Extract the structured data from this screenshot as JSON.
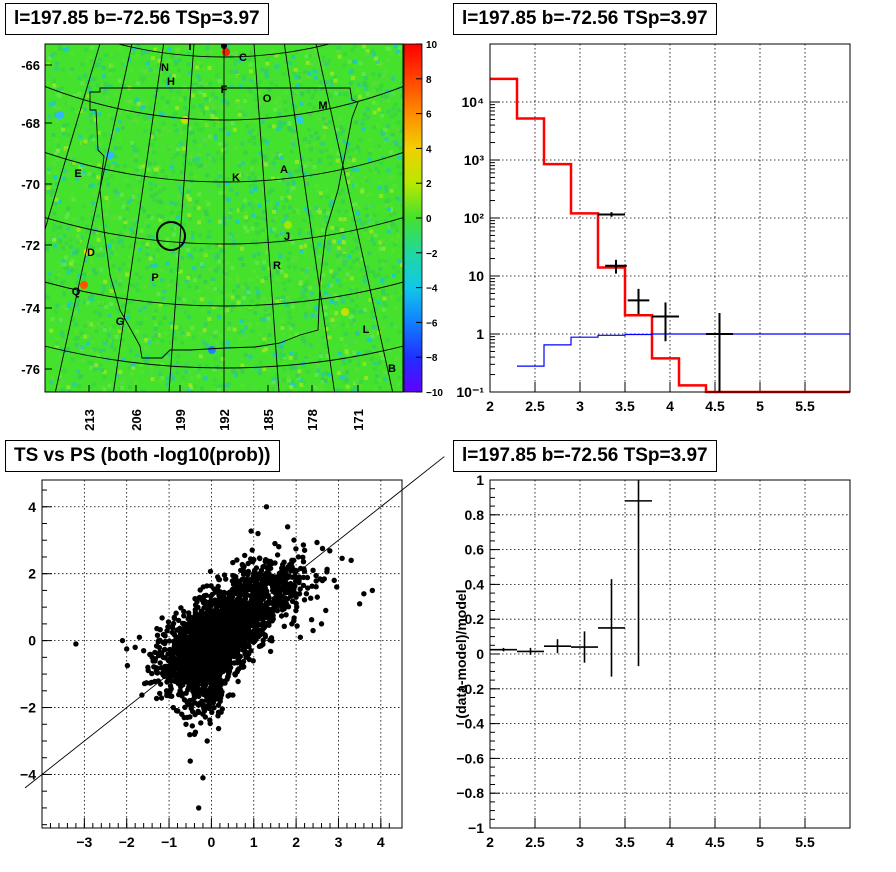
{
  "skymap": {
    "title": "l=197.85 b=-72.56 TSp=3.97",
    "ylabels": [
      "-66",
      "-68",
      "-70",
      "-72",
      "-74",
      "-76"
    ],
    "xlabels": [
      "213",
      "206",
      "199",
      "192",
      "185",
      "178",
      "171"
    ],
    "colorbar": {
      "min": -10,
      "max": 10,
      "ticks": [
        "10",
        "8",
        "6",
        "4",
        "2",
        "0",
        "−2",
        "−4",
        "−6",
        "−8",
        "−10"
      ]
    },
    "region_labels": [
      "I",
      "C",
      "N",
      "H",
      "F",
      "O",
      "M",
      "E",
      "K",
      "A",
      "J",
      "D",
      "R",
      "P",
      "Q",
      "G",
      "L",
      "B"
    ]
  },
  "chart_data": [
    {
      "type": "line",
      "title": "l=197.85 b=-72.56 TSp=3.97",
      "yscale": "log",
      "xlim": [
        2,
        6
      ],
      "ylim": [
        0.1,
        100000
      ],
      "x_ticks": [
        "2",
        "2.5",
        "3",
        "3.5",
        "4",
        "4.5",
        "5",
        "5.5"
      ],
      "y_ticks": [
        "10⁻¹",
        "1",
        "10",
        "10²",
        "10³",
        "10⁴"
      ],
      "grid": true,
      "series": [
        {
          "color": "#ff0000",
          "style": "step",
          "edges": [
            2,
            2.3,
            2.6,
            2.9,
            3.2,
            3.5,
            3.8,
            4.1,
            4.4,
            6
          ],
          "values": [
            25000,
            5200,
            850,
            120,
            14,
            2.1,
            0.38,
            0.13,
            0.1
          ]
        },
        {
          "color": "#0000ff",
          "style": "step",
          "edges": [
            2.3,
            2.6,
            2.9,
            3.2,
            3.5,
            3.8,
            4.1,
            4.4,
            6
          ],
          "values": [
            0.28,
            0.65,
            0.88,
            0.95,
            0.98,
            1.0,
            1.0,
            1.0
          ]
        },
        {
          "color": "#000000",
          "style": "errorbar",
          "points": [
            {
              "x": 3.35,
              "xerr": 0.15,
              "y": 115,
              "ylo": 105,
              "yhi": 126
            },
            {
              "x": 3.4,
              "xerr": 0.12,
              "y": 15,
              "ylo": 11,
              "yhi": 19
            },
            {
              "x": 3.65,
              "xerr": 0.12,
              "y": 3.8,
              "ylo": 2.2,
              "yhi": 6
            },
            {
              "x": 3.95,
              "xerr": 0.15,
              "y": 2,
              "ylo": 0.75,
              "yhi": 3.5
            },
            {
              "x": 4.55,
              "xerr": 0.15,
              "y": 1,
              "ylo": 0.1,
              "yhi": 2.3
            }
          ]
        }
      ]
    },
    {
      "type": "scatter",
      "title": "TS vs PS (both -log10(prob))",
      "xlim": [
        -4,
        4.5
      ],
      "ylim": [
        -5.6,
        4.8
      ],
      "x_ticks": [
        "−3",
        "−2",
        "−1",
        "0",
        "1",
        "2",
        "3",
        "4"
      ],
      "y_ticks": [
        "−4",
        "−2",
        "0",
        "2",
        "4"
      ],
      "grid": true,
      "line": {
        "slope": 1,
        "intercept": 0
      },
      "outliers": [
        [
          -3.2,
          -0.1
        ],
        [
          -2.0,
          -0.25
        ],
        [
          -1.8,
          -0.2
        ],
        [
          -1.5,
          -0.8
        ],
        [
          -1.3,
          -0.9
        ],
        [
          -1.2,
          -1.3
        ],
        [
          -1.0,
          -1.5
        ],
        [
          -0.9,
          -2.0
        ],
        [
          -0.7,
          -2.2
        ],
        [
          -0.6,
          -2.5
        ],
        [
          -0.5,
          -3.6
        ],
        [
          -0.2,
          -4.1
        ],
        [
          -0.3,
          -5.0
        ],
        [
          -0.4,
          -2.8
        ],
        [
          -0.1,
          -3.0
        ],
        [
          3.8,
          1.5
        ],
        [
          3.6,
          1.4
        ],
        [
          3.5,
          1.1
        ],
        [
          3.3,
          2.4
        ],
        [
          2.9,
          1.8
        ],
        [
          2.5,
          1.3
        ],
        [
          2.7,
          0.9
        ],
        [
          2.2,
          2.7
        ],
        [
          2.4,
          2.1
        ],
        [
          1.8,
          3.4
        ],
        [
          1.3,
          4.0
        ],
        [
          1.1,
          3.2
        ],
        [
          1.5,
          2.9
        ],
        [
          1.9,
          2.4
        ],
        [
          2.6,
          0.5
        ],
        [
          2.4,
          0.3
        ],
        [
          2.1,
          0.1
        ],
        [
          1.9,
          0.5
        ],
        [
          -2.1,
          0.0
        ],
        [
          -1.7,
          0.1
        ],
        [
          -1.6,
          -0.3
        ],
        [
          -1.4,
          -0.5
        ]
      ],
      "clouds": [
        {
          "cx": 0.0,
          "cy": 0.0,
          "sx": 0.55,
          "sy": 0.65,
          "rho": 0.45,
          "n": 1100
        },
        {
          "cx": 0.7,
          "cy": 1.0,
          "sx": 0.55,
          "sy": 0.75,
          "rho": 0.5,
          "n": 550
        },
        {
          "cx": -0.4,
          "cy": -0.5,
          "sx": 0.5,
          "sy": 0.6,
          "rho": 0.35,
          "n": 500
        },
        {
          "cx": 1.4,
          "cy": 1.2,
          "sx": 0.55,
          "sy": 0.6,
          "rho": 0.6,
          "n": 300
        },
        {
          "cx": -0.1,
          "cy": -1.5,
          "sx": 0.25,
          "sy": 0.5,
          "rho": 0.2,
          "n": 160
        }
      ]
    },
    {
      "type": "scatter",
      "title": "l=197.85 b=-72.56 TSp=3.97",
      "xlim": [
        2,
        6
      ],
      "ylim": [
        -1,
        1
      ],
      "ylabel": "(data-model)/model",
      "x_ticks": [
        "2",
        "2.5",
        "3",
        "3.5",
        "4",
        "4.5",
        "5",
        "5.5"
      ],
      "y_ticks": [
        "−1",
        "−0.8",
        "−0.6",
        "−0.4",
        "−0.2",
        "0",
        "0.2",
        "0.4",
        "0.6",
        "0.8",
        "1"
      ],
      "grid": true,
      "points": [
        {
          "x": 2.15,
          "xerr": 0.15,
          "y": 0.025,
          "err": 0.01
        },
        {
          "x": 2.45,
          "xerr": 0.15,
          "y": 0.015,
          "err": 0.02
        },
        {
          "x": 2.75,
          "xerr": 0.15,
          "y": 0.045,
          "err": 0.04
        },
        {
          "x": 3.05,
          "xerr": 0.15,
          "y": 0.04,
          "err": 0.09
        },
        {
          "x": 3.35,
          "xerr": 0.15,
          "y": 0.15,
          "err": 0.28
        },
        {
          "x": 3.65,
          "xerr": 0.15,
          "y": 0.88,
          "err": 0.95
        }
      ]
    }
  ]
}
